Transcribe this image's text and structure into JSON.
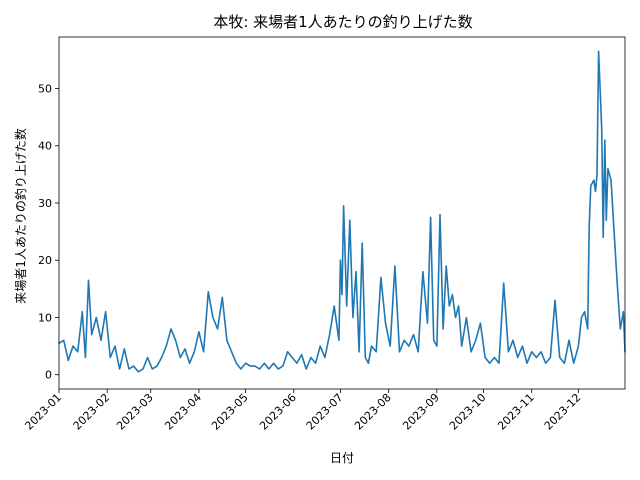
{
  "chart_data": {
    "type": "line",
    "title": "本牧: 来場者1人あたりの釣り上げた数",
    "xlabel": "日付",
    "ylabel": "来場者1人あたりの釣り上げた数",
    "grid": false,
    "x_ticks": [
      "2023-01",
      "2023-02",
      "2023-03",
      "2023-04",
      "2023-05",
      "2023-06",
      "2023-07",
      "2023-08",
      "2023-09",
      "2023-10",
      "2023-11",
      "2023-12"
    ],
    "y_ticks": [
      "0",
      "10",
      "20",
      "30",
      "40",
      "50"
    ],
    "xlim": [
      "2023-01-01",
      "2023-12-31"
    ],
    "ylim": [
      -2.5,
      59
    ],
    "series_color": "#1f77b4",
    "series": [
      {
        "x": [
          "2023-01-01",
          "2023-01-04",
          "2023-01-07",
          "2023-01-10",
          "2023-01-13",
          "2023-01-16",
          "2023-01-18",
          "2023-01-20",
          "2023-01-22",
          "2023-01-25",
          "2023-01-28",
          "2023-01-31",
          "2023-02-03",
          "2023-02-06",
          "2023-02-09",
          "2023-02-12",
          "2023-02-15",
          "2023-02-18",
          "2023-02-21",
          "2023-02-24",
          "2023-02-27",
          "2023-03-02",
          "2023-03-05",
          "2023-03-08",
          "2023-03-11",
          "2023-03-14",
          "2023-03-17",
          "2023-03-20",
          "2023-03-23",
          "2023-03-26",
          "2023-03-29",
          "2023-04-01",
          "2023-04-04",
          "2023-04-07",
          "2023-04-10",
          "2023-04-13",
          "2023-04-16",
          "2023-04-19",
          "2023-04-22",
          "2023-04-25",
          "2023-04-28",
          "2023-05-01",
          "2023-05-04",
          "2023-05-07",
          "2023-05-10",
          "2023-05-13",
          "2023-05-16",
          "2023-05-19",
          "2023-05-22",
          "2023-05-25",
          "2023-05-28",
          "2023-05-31",
          "2023-06-03",
          "2023-06-06",
          "2023-06-09",
          "2023-06-12",
          "2023-06-15",
          "2023-06-18",
          "2023-06-21",
          "2023-06-24",
          "2023-06-27",
          "2023-06-30",
          "2023-07-01",
          "2023-07-02",
          "2023-07-03",
          "2023-07-05",
          "2023-07-07",
          "2023-07-09",
          "2023-07-11",
          "2023-07-13",
          "2023-07-15",
          "2023-07-17",
          "2023-07-19",
          "2023-07-21",
          "2023-07-24",
          "2023-07-27",
          "2023-07-30",
          "2023-08-02",
          "2023-08-05",
          "2023-08-08",
          "2023-08-11",
          "2023-08-14",
          "2023-08-17",
          "2023-08-20",
          "2023-08-23",
          "2023-08-26",
          "2023-08-28",
          "2023-08-30",
          "2023-09-01",
          "2023-09-03",
          "2023-09-05",
          "2023-09-07",
          "2023-09-09",
          "2023-09-11",
          "2023-09-13",
          "2023-09-15",
          "2023-09-17",
          "2023-09-20",
          "2023-09-23",
          "2023-09-26",
          "2023-09-29",
          "2023-10-02",
          "2023-10-05",
          "2023-10-08",
          "2023-10-11",
          "2023-10-14",
          "2023-10-17",
          "2023-10-20",
          "2023-10-23",
          "2023-10-26",
          "2023-10-29",
          "2023-11-01",
          "2023-11-04",
          "2023-11-07",
          "2023-11-10",
          "2023-11-13",
          "2023-11-16",
          "2023-11-19",
          "2023-11-22",
          "2023-11-25",
          "2023-11-28",
          "2023-12-01",
          "2023-12-03",
          "2023-12-05",
          "2023-12-07",
          "2023-12-08",
          "2023-12-09",
          "2023-12-11",
          "2023-12-12",
          "2023-12-13",
          "2023-12-14",
          "2023-12-16",
          "2023-12-17",
          "2023-12-18",
          "2023-12-19",
          "2023-12-20",
          "2023-12-22",
          "2023-12-24",
          "2023-12-26",
          "2023-12-28",
          "2023-12-30",
          "2023-12-31"
        ],
        "y": [
          5.5,
          6,
          2.5,
          5,
          4,
          11,
          3,
          16.5,
          7,
          10,
          6,
          11,
          3,
          5,
          1,
          4.5,
          1,
          1.5,
          0.5,
          1,
          3,
          1,
          1.5,
          3,
          5,
          8,
          6,
          3,
          4.5,
          2,
          4,
          7.5,
          4,
          14.5,
          10,
          8,
          13.5,
          6,
          4,
          2,
          1,
          2,
          1.5,
          1.5,
          1,
          2,
          1,
          2,
          1,
          1.5,
          4,
          3,
          2,
          3.5,
          1,
          3,
          2,
          5,
          3,
          7,
          12,
          6,
          20,
          14,
          29.5,
          12,
          27,
          10,
          18,
          4,
          23,
          3,
          2,
          5,
          4,
          17,
          9,
          5,
          19,
          4,
          6,
          5,
          7,
          4,
          18,
          9,
          27.5,
          6,
          5,
          28,
          8,
          19,
          12,
          14,
          10,
          12,
          5,
          10,
          4,
          6,
          9,
          3,
          2,
          3,
          2,
          16,
          4,
          6,
          3,
          5,
          2,
          4,
          3,
          4,
          2,
          3,
          13,
          3,
          2,
          6,
          2,
          5,
          10,
          11,
          8,
          26,
          33,
          34,
          32,
          35,
          56.5,
          43,
          24,
          41,
          27,
          36,
          34,
          25,
          16,
          8,
          11,
          4
        ]
      }
    ]
  }
}
